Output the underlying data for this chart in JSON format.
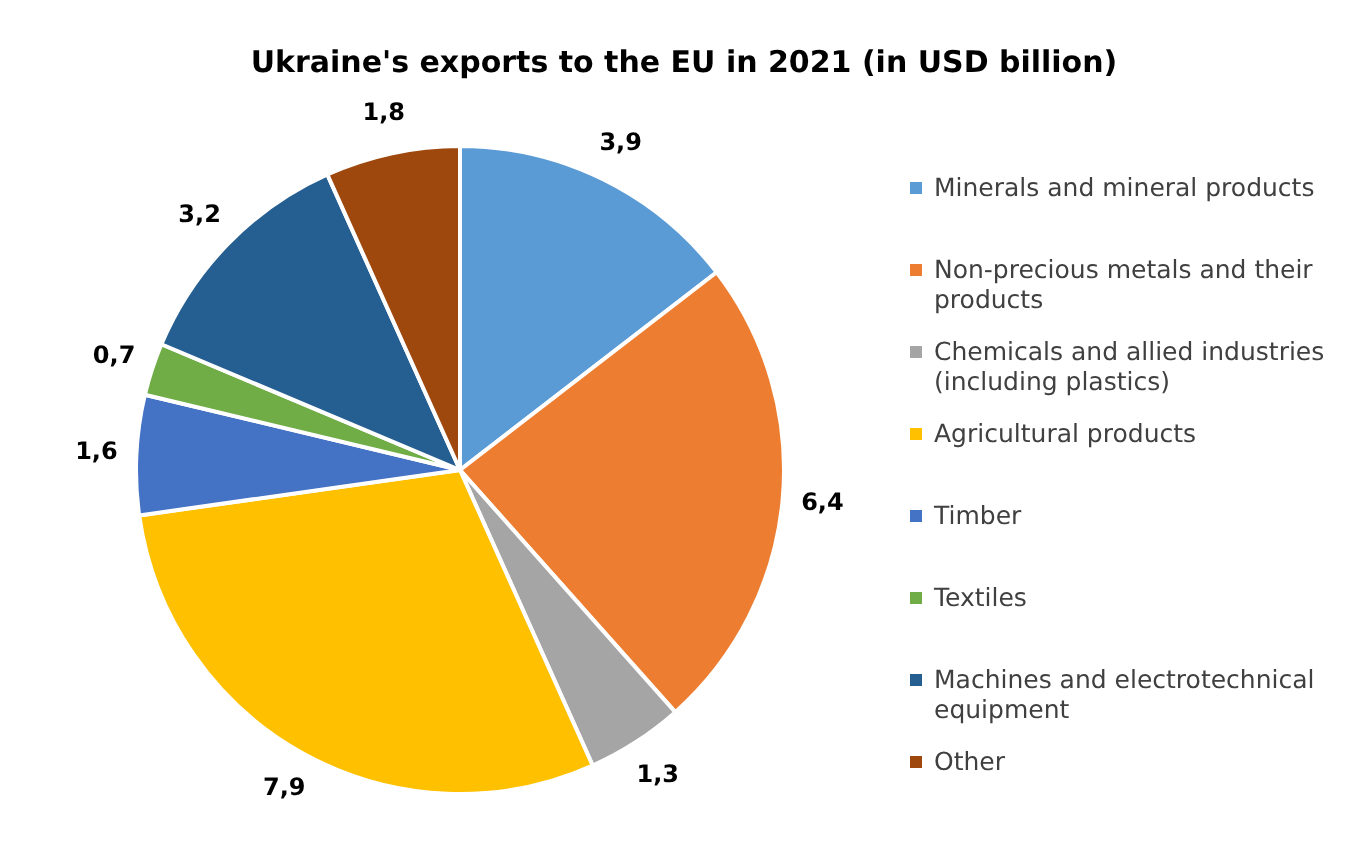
{
  "chart_data": {
    "type": "pie",
    "title": "Ukraine's exports to the EU in 2021 (in USD billion)",
    "categories": [
      "Minerals and mineral products",
      "Non-precious metals and their products",
      "Chemicals and allied industries (including plastics)",
      "Agricultural products",
      "Timber",
      "Textiles",
      "Machines and electrotechnical equipment",
      "Other"
    ],
    "values": [
      3.9,
      6.4,
      1.3,
      7.9,
      1.6,
      0.7,
      3.2,
      1.8
    ],
    "value_labels": [
      "3,9",
      "6,4",
      "1,3",
      "7,9",
      "1,6",
      "0,7",
      "3,2",
      "1,8"
    ],
    "colors": [
      "#5b9bd5",
      "#ed7d31",
      "#a5a5a5",
      "#ffc000",
      "#4472c4",
      "#70ad47",
      "#255e91",
      "#9e480e"
    ],
    "legend": "right"
  }
}
